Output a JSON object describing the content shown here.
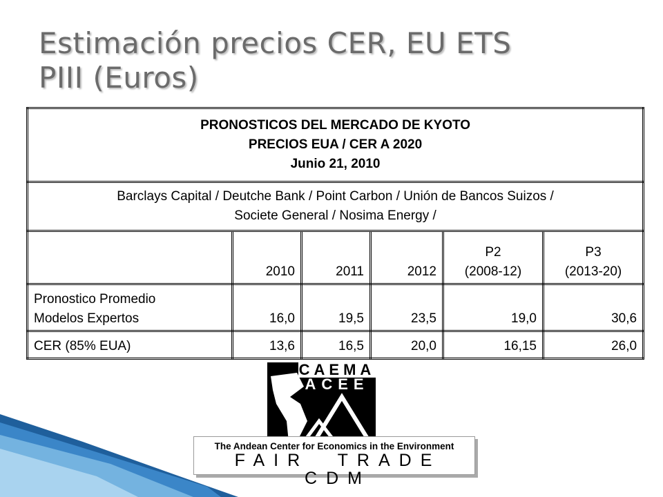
{
  "title": "Estimación precios CER, EU ETS PIII (Euros)",
  "table": {
    "heading": [
      "PRONOSTICOS DEL MERCADO DE KYOTO",
      "PRECIOS EUA / CER A 2020",
      "Junio 21, 2010"
    ],
    "sources": [
      "Barclays Capital / Deutche Bank / Point Carbon / Unión de Bancos Suizos /",
      "Societe General / Nosima Energy /"
    ],
    "columns": [
      [
        "2010"
      ],
      [
        "2011"
      ],
      [
        "2012"
      ],
      [
        "P2",
        "(2008-12)"
      ],
      [
        "P3",
        "(2013-20)"
      ]
    ],
    "rows": [
      {
        "label": [
          "Pronostico Promedio",
          "Modelos Expertos"
        ],
        "values": [
          "16,0",
          "19,5",
          "23,5",
          "19,0",
          "30,6"
        ]
      },
      {
        "label": [
          "CER (85% EUA)"
        ],
        "values": [
          "13,6",
          "16,5",
          "20,0",
          "16,15",
          "26,0"
        ]
      }
    ]
  },
  "logo": {
    "top": "CAEMA",
    "middle": "ACEE",
    "subtitle": "The Andean Center for Economics in the Environment",
    "tagline": "FAIR TRADE CDM"
  }
}
